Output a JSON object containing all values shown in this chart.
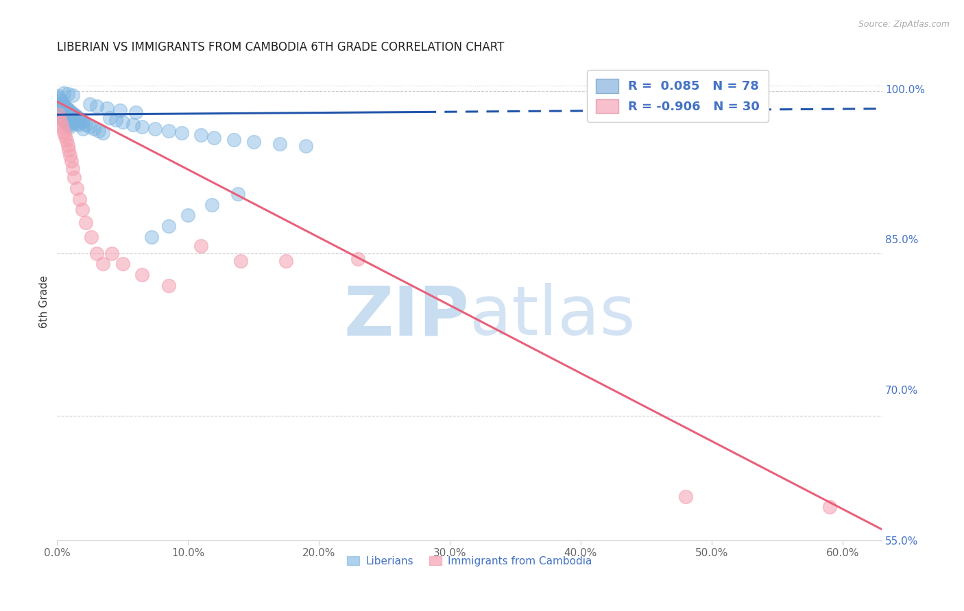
{
  "title": "LIBERIAN VS IMMIGRANTS FROM CAMBODIA 6TH GRADE CORRELATION CHART",
  "source": "Source: ZipAtlas.com",
  "ylabel": "6th Grade",
  "xlim": [
    0.0,
    0.63
  ],
  "ylim": [
    0.585,
    1.025
  ],
  "blue_color": "#7ab3e0",
  "pink_color": "#f4a0b0",
  "blue_line_color": "#2255aa",
  "pink_line_color": "#e8607a",
  "legend_R_blue": "0.085",
  "legend_N_blue": "78",
  "legend_R_pink": "-0.906",
  "legend_N_pink": "30",
  "legend_text_color": "#4472c4",
  "watermark_zip": "ZIP",
  "watermark_atlas": "atlas",
  "watermark_color": "#c8ddf0",
  "blue_trendline_x": [
    0.0,
    0.63
  ],
  "blue_trendline_y": [
    0.978,
    0.9835
  ],
  "blue_trendline_solid_end": 0.28,
  "pink_trendline_x": [
    0.0,
    0.63
  ],
  "pink_trendline_y": [
    0.99,
    0.595
  ],
  "blue_scatter_x": [
    0.001,
    0.001,
    0.001,
    0.002,
    0.002,
    0.002,
    0.003,
    0.003,
    0.003,
    0.004,
    0.004,
    0.004,
    0.005,
    0.005,
    0.005,
    0.006,
    0.006,
    0.006,
    0.007,
    0.007,
    0.007,
    0.008,
    0.008,
    0.008,
    0.009,
    0.009,
    0.009,
    0.01,
    0.01,
    0.01,
    0.011,
    0.011,
    0.012,
    0.012,
    0.013,
    0.013,
    0.014,
    0.015,
    0.015,
    0.016,
    0.016,
    0.017,
    0.018,
    0.019,
    0.02,
    0.02,
    0.022,
    0.025,
    0.028,
    0.032,
    0.035,
    0.04,
    0.045,
    0.05,
    0.058,
    0.065,
    0.075,
    0.085,
    0.095,
    0.11,
    0.12,
    0.135,
    0.15,
    0.17,
    0.19,
    0.025,
    0.03,
    0.038,
    0.048,
    0.06,
    0.072,
    0.085,
    0.1,
    0.118,
    0.138,
    0.005,
    0.008,
    0.012
  ],
  "blue_scatter_y": [
    0.995,
    0.988,
    0.982,
    0.993,
    0.986,
    0.978,
    0.991,
    0.984,
    0.976,
    0.989,
    0.982,
    0.975,
    0.987,
    0.98,
    0.973,
    0.985,
    0.978,
    0.971,
    0.984,
    0.977,
    0.97,
    0.983,
    0.976,
    0.969,
    0.982,
    0.975,
    0.968,
    0.981,
    0.974,
    0.967,
    0.98,
    0.973,
    0.979,
    0.972,
    0.978,
    0.971,
    0.977,
    0.976,
    0.97,
    0.975,
    0.969,
    0.974,
    0.973,
    0.972,
    0.971,
    0.965,
    0.969,
    0.967,
    0.965,
    0.963,
    0.961,
    0.975,
    0.973,
    0.971,
    0.969,
    0.967,
    0.965,
    0.963,
    0.961,
    0.959,
    0.957,
    0.955,
    0.953,
    0.951,
    0.949,
    0.988,
    0.986,
    0.984,
    0.982,
    0.98,
    0.865,
    0.875,
    0.885,
    0.895,
    0.905,
    0.998,
    0.997,
    0.996
  ],
  "pink_scatter_x": [
    0.001,
    0.002,
    0.003,
    0.004,
    0.005,
    0.006,
    0.007,
    0.008,
    0.009,
    0.01,
    0.011,
    0.012,
    0.013,
    0.015,
    0.017,
    0.019,
    0.022,
    0.026,
    0.03,
    0.035,
    0.042,
    0.05,
    0.065,
    0.085,
    0.11,
    0.14,
    0.175,
    0.23,
    0.48,
    0.59
  ],
  "pink_scatter_y": [
    0.978,
    0.974,
    0.97,
    0.966,
    0.962,
    0.958,
    0.954,
    0.95,
    0.945,
    0.94,
    0.935,
    0.928,
    0.92,
    0.91,
    0.9,
    0.89,
    0.878,
    0.865,
    0.85,
    0.84,
    0.85,
    0.84,
    0.83,
    0.82,
    0.857,
    0.843,
    0.843,
    0.845,
    0.625,
    0.616
  ]
}
